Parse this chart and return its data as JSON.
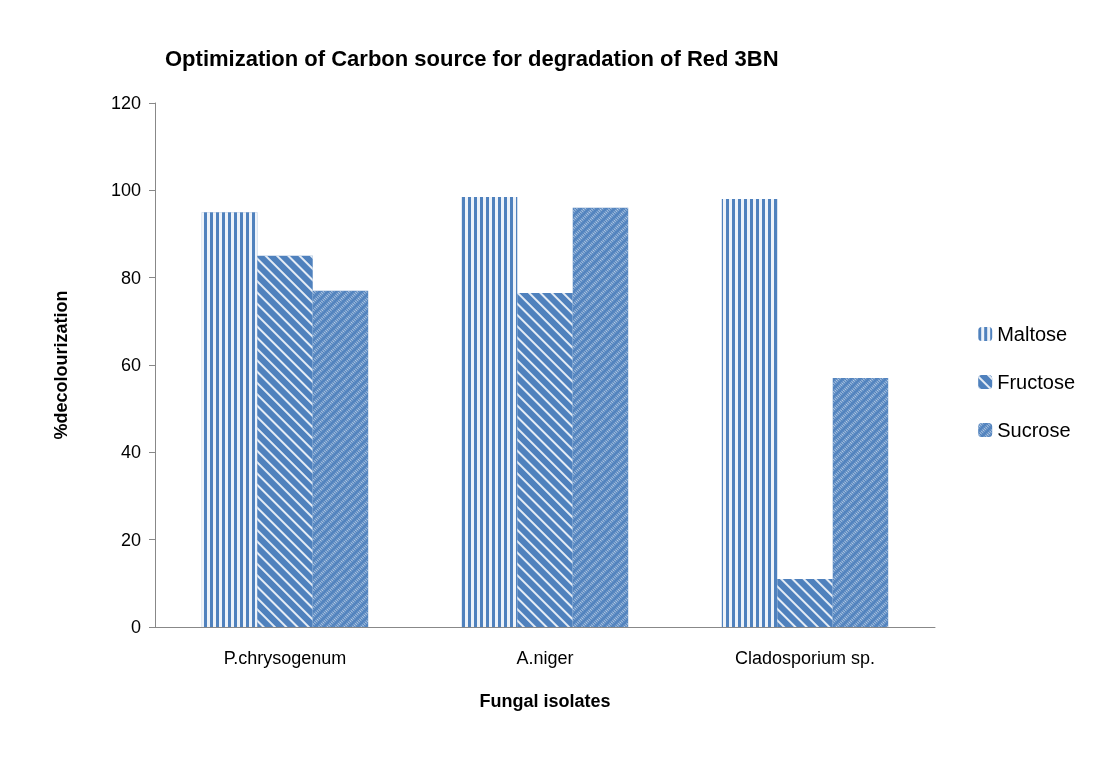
{
  "chart_data": {
    "type": "bar",
    "title": "Optimization of Carbon source for degradation of Red 3BN",
    "xlabel": "Fungal isolates",
    "ylabel": "%decolourization",
    "categories": [
      "P.chrysogenum",
      "A.niger",
      "Cladosporium sp."
    ],
    "series": [
      {
        "name": "Maltose",
        "color": "#4f81bd",
        "values": [
          95,
          98.5,
          98
        ]
      },
      {
        "name": "Fructose",
        "color": "#4f81bd",
        "values": [
          85,
          76.5,
          11
        ]
      },
      {
        "name": "Sucrose",
        "color": "#4f81bd",
        "values": [
          77,
          96,
          57
        ]
      }
    ],
    "ylim": [
      0,
      120
    ],
    "yticks": [
      0,
      20,
      40,
      60,
      80,
      100,
      120
    ],
    "grid": false,
    "legend": "right"
  }
}
